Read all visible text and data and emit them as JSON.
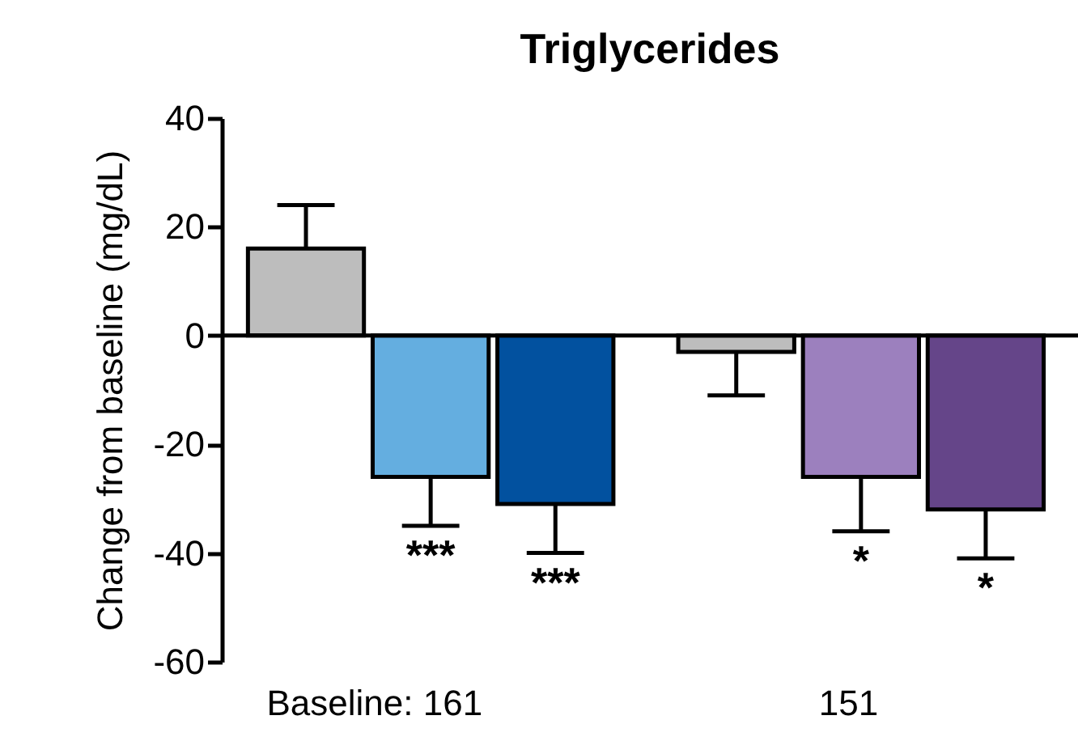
{
  "chart_data": {
    "type": "bar",
    "title": "Triglycerides",
    "ylabel": "Change from baseline (mg/dL)",
    "categories": [
      null,
      null,
      null,
      null,
      null,
      null
    ],
    "values": [
      16,
      -26,
      -31,
      -3,
      -26,
      -32
    ],
    "colors": [
      "#bdbdbd",
      "#64aee0",
      "#02519f",
      "#bdbdbd",
      "#9c80be",
      "#654589"
    ],
    "errors": [
      [
        16,
        24
      ],
      [
        -35,
        -26
      ],
      [
        -40,
        -31
      ],
      [
        -11,
        -3
      ],
      [
        -36,
        -26
      ],
      [
        -41,
        -32
      ]
    ],
    "value_labels": [
      null,
      "***",
      "***",
      null,
      "*",
      "*"
    ],
    "annotations": [
      "Baseline: 161",
      "151"
    ],
    "ylim": [
      -60,
      40
    ],
    "yticks": [
      -60,
      -40,
      -20,
      0,
      20,
      40
    ],
    "ref_lines": [
      {
        "axis": "y",
        "value": 0
      }
    ],
    "grid": false
  }
}
